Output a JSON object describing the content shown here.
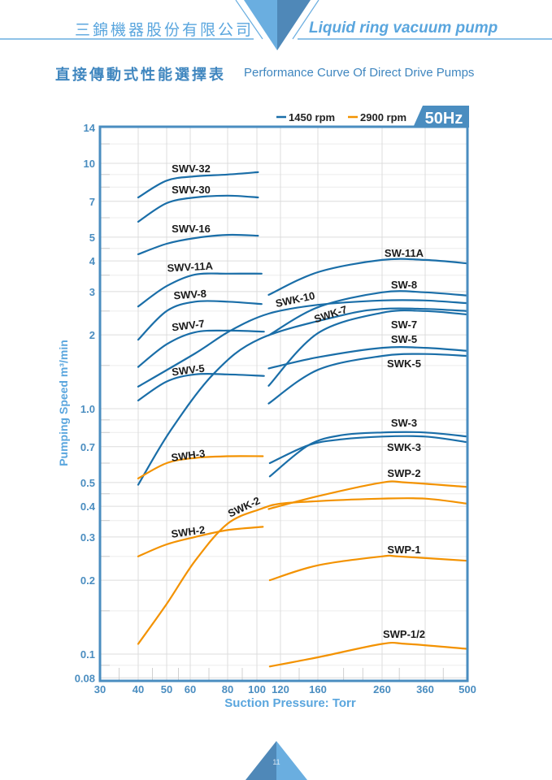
{
  "header": {
    "company": "三錦機器股份有限公司",
    "tagline": "Liquid ring vacuum pump"
  },
  "title": {
    "zh": "直接傳動式性能選擇表",
    "en": "Performance Curve Of Direct Drive Pumps"
  },
  "page_number": "11",
  "colors": {
    "rpm1450": "#1a6ea8",
    "rpm2900": "#f39200",
    "frame": "#4a8dc0",
    "accent": "#5aa6de"
  },
  "chart_data": {
    "type": "line",
    "frequency_badge": "50Hz",
    "xlabel": "Suction Pressure: Torr",
    "ylabel": "Pumping Speed m³/min",
    "x_scale": "nonlinear (vacuum)",
    "y_scale": "log",
    "xlim": [
      30,
      500
    ],
    "ylim": [
      0.08,
      14
    ],
    "grid": true,
    "legend_position": "top-right",
    "legend": [
      {
        "label": "1450 rpm",
        "rpm": 1450
      },
      {
        "label": "2900 rpm",
        "rpm": 2900
      }
    ],
    "x_ticks": [
      "30",
      "40",
      "50",
      "60",
      "80",
      "100",
      "120",
      "160",
      "260",
      "360",
      "500"
    ],
    "y_ticks": [
      "14",
      "10",
      "7",
      "5",
      "4",
      "3",
      "2",
      "1.0",
      "0.7",
      "0.5",
      "0.4",
      "0.3",
      "0.2",
      "0.1",
      "0.08"
    ],
    "series": [
      {
        "name": "SWV-32",
        "rpm": 1450,
        "points": [
          [
            40,
            7.26
          ],
          [
            50,
            8.5
          ],
          [
            62.6,
            8.85
          ],
          [
            80,
            9.0
          ],
          [
            101,
            9.2
          ]
        ]
      },
      {
        "name": "SWV-30",
        "rpm": 1450,
        "points": [
          [
            40,
            5.78
          ],
          [
            50,
            6.88
          ],
          [
            62.6,
            7.26
          ],
          [
            80,
            7.38
          ],
          [
            101,
            7.26
          ]
        ]
      },
      {
        "name": "SWV-16",
        "rpm": 1450,
        "points": [
          [
            40,
            4.26
          ],
          [
            50,
            4.7
          ],
          [
            62.6,
            4.96
          ],
          [
            80,
            5.11
          ],
          [
            101,
            5.07
          ]
        ]
      },
      {
        "name": "SWV-11A",
        "rpm": 1450,
        "points": [
          [
            40,
            2.61
          ],
          [
            50,
            3.16
          ],
          [
            62.6,
            3.52
          ],
          [
            80,
            3.55
          ],
          [
            104,
            3.55
          ]
        ]
      },
      {
        "name": "SWV-8",
        "rpm": 1450,
        "points": [
          [
            40,
            1.91
          ],
          [
            50,
            2.5
          ],
          [
            62.6,
            2.73
          ],
          [
            80,
            2.73
          ],
          [
            104,
            2.67
          ]
        ]
      },
      {
        "name": "SWV-7",
        "rpm": 1450,
        "points": [
          [
            40,
            1.48
          ],
          [
            50,
            1.83
          ],
          [
            62.6,
            2.05
          ],
          [
            80,
            2.08
          ],
          [
            106,
            2.06
          ]
        ]
      },
      {
        "name": "SWV-5",
        "rpm": 1450,
        "points": [
          [
            40,
            1.08
          ],
          [
            50,
            1.29
          ],
          [
            62.6,
            1.38
          ],
          [
            80,
            1.38
          ],
          [
            106,
            1.36
          ]
        ]
      },
      {
        "name": "SWK-10",
        "rpm": 1450,
        "points": [
          [
            40,
            1.23
          ],
          [
            62.6,
            1.68
          ],
          [
            82,
            2.08
          ],
          [
            110,
            2.44
          ],
          [
            160,
            2.65
          ],
          [
            260,
            2.76
          ],
          [
            360,
            2.76
          ],
          [
            500,
            2.69
          ]
        ]
      },
      {
        "name": "SWK-7",
        "rpm": 1450,
        "points": [
          [
            40,
            0.49
          ],
          [
            51.5,
            0.81
          ],
          [
            72.6,
            1.39
          ],
          [
            103,
            1.93
          ],
          [
            197,
            2.4
          ],
          [
            260,
            2.55
          ],
          [
            360,
            2.55
          ],
          [
            500,
            2.5
          ]
        ]
      },
      {
        "name": "SW-11A",
        "rpm": 1450,
        "points": [
          [
            110,
            2.91
          ],
          [
            160,
            3.6
          ],
          [
            260,
            4.04
          ],
          [
            360,
            4.04
          ],
          [
            500,
            3.91
          ]
        ]
      },
      {
        "name": "SW-8",
        "rpm": 1450,
        "points": [
          [
            110,
            1.99
          ],
          [
            160,
            2.59
          ],
          [
            260,
            2.98
          ],
          [
            360,
            2.98
          ],
          [
            500,
            2.89
          ]
        ]
      },
      {
        "name": "SW-7",
        "rpm": 1450,
        "points": [
          [
            110,
            1.24
          ],
          [
            160,
            2.03
          ],
          [
            260,
            2.46
          ],
          [
            360,
            2.5
          ],
          [
            500,
            2.42
          ]
        ]
      },
      {
        "name": "SW-5",
        "rpm": 1450,
        "points": [
          [
            110,
            1.46
          ],
          [
            160,
            1.62
          ],
          [
            260,
            1.77
          ],
          [
            360,
            1.77
          ],
          [
            500,
            1.72
          ]
        ]
      },
      {
        "name": "SWK-5",
        "rpm": 1450,
        "points": [
          [
            110,
            1.05
          ],
          [
            160,
            1.44
          ],
          [
            260,
            1.64
          ],
          [
            360,
            1.67
          ],
          [
            500,
            1.64
          ]
        ]
      },
      {
        "name": "SW-3",
        "rpm": 1450,
        "points": [
          [
            111,
            0.53
          ],
          [
            150,
            0.71
          ],
          [
            197,
            0.78
          ],
          [
            260,
            0.8
          ],
          [
            360,
            0.8
          ],
          [
            500,
            0.77
          ]
        ]
      },
      {
        "name": "SWK-3",
        "rpm": 1450,
        "points": [
          [
            111,
            0.6
          ],
          [
            150,
            0.71
          ],
          [
            197,
            0.75
          ],
          [
            260,
            0.77
          ],
          [
            360,
            0.77
          ],
          [
            500,
            0.73
          ]
        ]
      },
      {
        "name": "SWH-3",
        "rpm": 2900,
        "points": [
          [
            40,
            0.52
          ],
          [
            50,
            0.6
          ],
          [
            62.6,
            0.63
          ],
          [
            80,
            0.64
          ],
          [
            105,
            0.64
          ]
        ]
      },
      {
        "name": "SWH-2",
        "rpm": 2900,
        "points": [
          [
            40,
            0.25
          ],
          [
            50,
            0.28
          ],
          [
            62.6,
            0.3
          ],
          [
            80,
            0.32
          ],
          [
            105,
            0.33
          ]
        ]
      },
      {
        "name": "SWK-2",
        "rpm": 2900,
        "points": [
          [
            40,
            0.11
          ],
          [
            50,
            0.16
          ],
          [
            62.6,
            0.24
          ],
          [
            80,
            0.34
          ],
          [
            103,
            0.39
          ],
          [
            120,
            0.41
          ],
          [
            160,
            0.42
          ],
          [
            260,
            0.43
          ],
          [
            360,
            0.43
          ],
          [
            500,
            0.41
          ]
        ]
      },
      {
        "name": "SWP-2",
        "rpm": 2900,
        "points": [
          [
            110,
            0.39
          ],
          [
            160,
            0.44
          ],
          [
            260,
            0.5
          ],
          [
            317,
            0.5
          ],
          [
            500,
            0.48
          ]
        ]
      },
      {
        "name": "SWP-1",
        "rpm": 2900,
        "points": [
          [
            111,
            0.2
          ],
          [
            160,
            0.23
          ],
          [
            260,
            0.25
          ],
          [
            298,
            0.25
          ],
          [
            500,
            0.24
          ]
        ]
      },
      {
        "name": "SWP-1/2",
        "rpm": 2900,
        "points": [
          [
            111,
            0.089
          ],
          [
            160,
            0.097
          ],
          [
            260,
            0.11
          ],
          [
            317,
            0.11
          ],
          [
            500,
            0.105
          ]
        ]
      }
    ]
  }
}
